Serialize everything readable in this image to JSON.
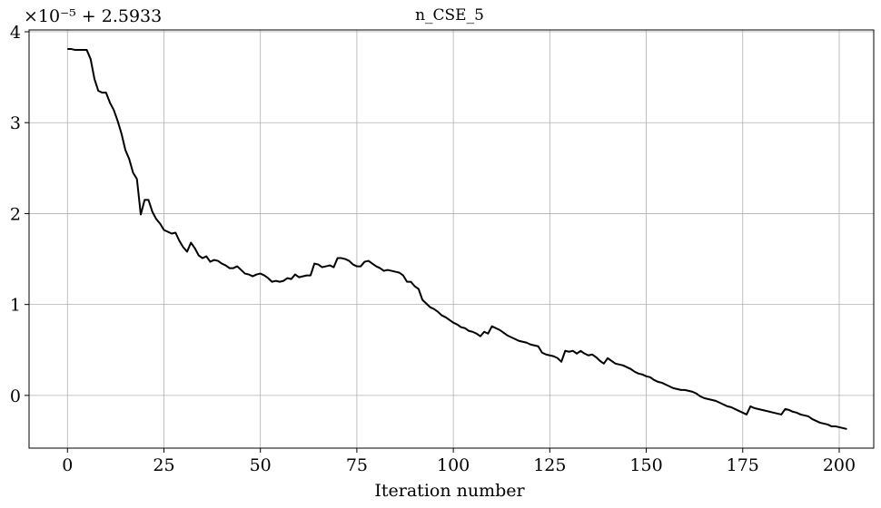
{
  "chart_data": {
    "type": "line",
    "title": "n_CSE_5",
    "xlabel": "Iteration number",
    "ylabel": "",
    "offset_label": "×10⁻⁵ + 2.5933",
    "xlim": [
      -9.95,
      208.95
    ],
    "ylim": [
      -0.58,
      4.02
    ],
    "xticks": [
      0,
      25,
      50,
      75,
      100,
      125,
      150,
      175,
      200
    ],
    "yticks": [
      0,
      1,
      2,
      3,
      4
    ],
    "grid": true,
    "line_color": "#000000",
    "series": [
      {
        "values": [
          3.81,
          3.81,
          3.8,
          3.8,
          3.8,
          3.8,
          3.7,
          3.48,
          3.35,
          3.33,
          3.33,
          3.22,
          3.14,
          3.02,
          2.88,
          2.7,
          2.6,
          2.45,
          2.38,
          1.99,
          2.15,
          2.15,
          2.02,
          1.94,
          1.89,
          1.82,
          1.8,
          1.78,
          1.79,
          1.7,
          1.63,
          1.58,
          1.68,
          1.62,
          1.54,
          1.51,
          1.53,
          1.47,
          1.49,
          1.48,
          1.45,
          1.43,
          1.4,
          1.4,
          1.42,
          1.38,
          1.34,
          1.33,
          1.31,
          1.33,
          1.34,
          1.32,
          1.29,
          1.25,
          1.26,
          1.25,
          1.26,
          1.29,
          1.28,
          1.33,
          1.3,
          1.31,
          1.32,
          1.32,
          1.45,
          1.44,
          1.41,
          1.42,
          1.43,
          1.41,
          1.51,
          1.51,
          1.5,
          1.48,
          1.44,
          1.42,
          1.42,
          1.47,
          1.48,
          1.45,
          1.42,
          1.4,
          1.37,
          1.38,
          1.37,
          1.36,
          1.35,
          1.32,
          1.25,
          1.25,
          1.2,
          1.17,
          1.05,
          1.01,
          0.97,
          0.95,
          0.92,
          0.88,
          0.86,
          0.83,
          0.8,
          0.78,
          0.75,
          0.74,
          0.71,
          0.7,
          0.68,
          0.65,
          0.7,
          0.68,
          0.76,
          0.74,
          0.72,
          0.69,
          0.66,
          0.64,
          0.62,
          0.6,
          0.59,
          0.58,
          0.56,
          0.55,
          0.54,
          0.47,
          0.45,
          0.44,
          0.43,
          0.41,
          0.37,
          0.49,
          0.48,
          0.49,
          0.46,
          0.49,
          0.46,
          0.44,
          0.45,
          0.42,
          0.38,
          0.35,
          0.41,
          0.38,
          0.35,
          0.34,
          0.33,
          0.31,
          0.29,
          0.26,
          0.24,
          0.23,
          0.21,
          0.2,
          0.17,
          0.15,
          0.14,
          0.12,
          0.1,
          0.08,
          0.07,
          0.06,
          0.06,
          0.05,
          0.04,
          0.02,
          -0.01,
          -0.03,
          -0.04,
          -0.05,
          -0.06,
          -0.08,
          -0.1,
          -0.12,
          -0.13,
          -0.15,
          -0.17,
          -0.19,
          -0.21,
          -0.12,
          -0.14,
          -0.15,
          -0.16,
          -0.17,
          -0.18,
          -0.19,
          -0.2,
          -0.21,
          -0.15,
          -0.16,
          -0.18,
          -0.19,
          -0.21,
          -0.22,
          -0.23,
          -0.26,
          -0.28,
          -0.3,
          -0.31,
          -0.32,
          -0.34,
          -0.34,
          -0.35,
          -0.36,
          -0.37
        ]
      }
    ]
  }
}
